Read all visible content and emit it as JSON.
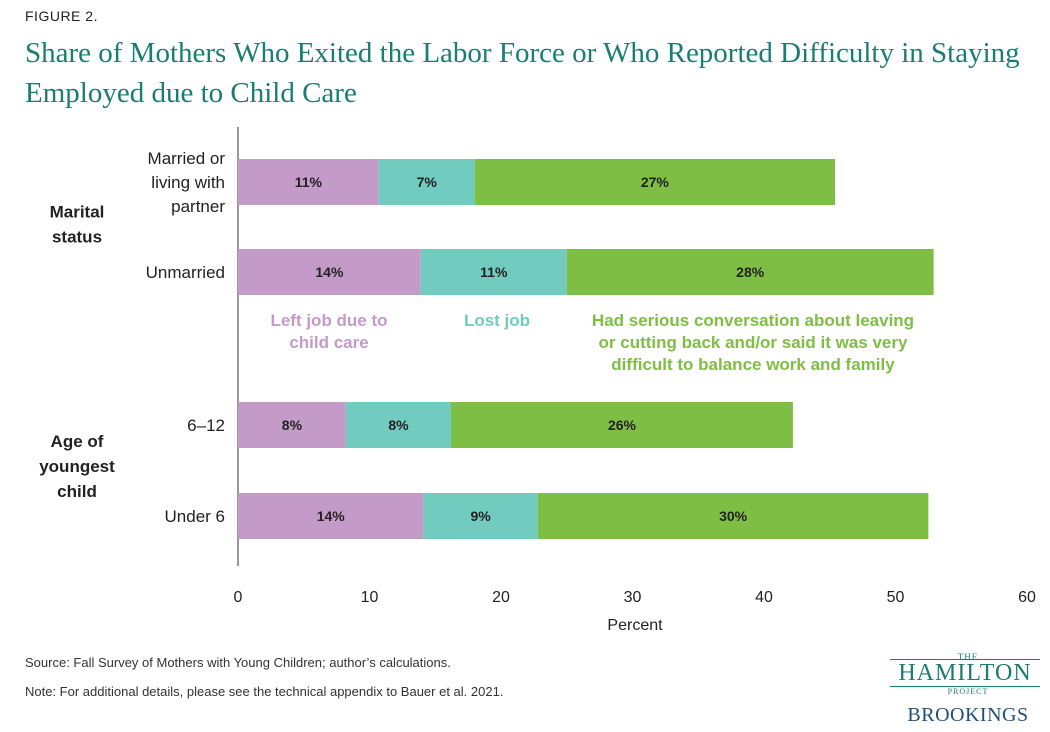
{
  "figure_label": "FIGURE 2.",
  "title": "Share of Mothers Who Exited the Labor Force or Who Reported Difficulty in Staying Employed due to Child Care",
  "source": "Source: Fall Survey of Mothers with Young Children; author’s calculations.",
  "note": "Note: For additional details, please see the technical appendix to Bauer et al. 2021.",
  "logo": {
    "the": "THE",
    "name": "HAMILTON",
    "project": "PROJECT",
    "brookings": "BROOKINGS"
  },
  "colors": {
    "left_job": "#c49ac9",
    "lost_job": "#72cbbf",
    "serious": "#7fbe45",
    "title": "#1b7d72"
  },
  "chart_data": {
    "type": "bar",
    "orientation": "horizontal",
    "stacked": true,
    "xlabel": "Percent",
    "xlim": [
      0,
      60
    ],
    "xticks": [
      0,
      10,
      20,
      30,
      40,
      50,
      60
    ],
    "grid": false,
    "groups": [
      {
        "label": "Marital status",
        "categories": [
          "Married or living with partner",
          "Unmarried"
        ]
      },
      {
        "label": "Age of youngest child",
        "categories": [
          "6–12",
          "Under 6"
        ]
      }
    ],
    "categories": [
      "Married or living with partner",
      "Unmarried",
      "6–12",
      "Under 6"
    ],
    "series": [
      {
        "name": "Left job due to child care",
        "color": "#c49ac9",
        "values": [
          10.7,
          13.9,
          8.2,
          14.1
        ],
        "labels": [
          "11%",
          "14%",
          "8%",
          "14%"
        ]
      },
      {
        "name": "Lost job",
        "color": "#72cbbf",
        "values": [
          7.3,
          11.1,
          8.0,
          8.7
        ],
        "labels": [
          "7%",
          "11%",
          "8%",
          "9%"
        ]
      },
      {
        "name": "Had serious conversation about leaving or cutting back and/or said it was very difficult to balance work and family",
        "color": "#7fbe45",
        "values": [
          27.4,
          27.9,
          26.0,
          29.7
        ],
        "labels": [
          "27%",
          "28%",
          "26%",
          "30%"
        ]
      }
    ],
    "legend_lines": [
      [
        "Left job due to",
        "child care"
      ],
      [
        "Lost job"
      ],
      [
        "Had serious conversation about leaving",
        "or cutting back and/or said it was very",
        "difficult to balance work and family"
      ]
    ],
    "category_lines": [
      [
        "Married or",
        "living with",
        "partner"
      ],
      [
        "Unmarried"
      ],
      [
        "6–12"
      ],
      [
        "Under 6"
      ]
    ],
    "group_lines": [
      [
        "Marital",
        "status"
      ],
      [
        "Age of",
        "youngest",
        "child"
      ]
    ],
    "legend_placement": "between groups, inside plot"
  }
}
